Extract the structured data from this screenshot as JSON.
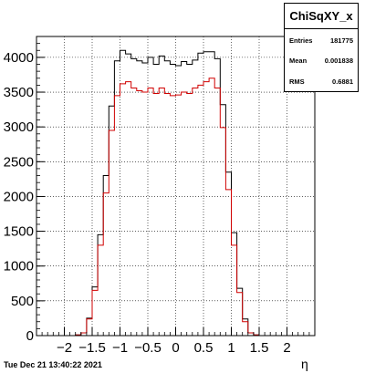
{
  "chart_data": {
    "type": "line",
    "style": "step histogram",
    "title": "",
    "xlabel": "η",
    "ylabel": "",
    "xlim": [
      -2.5,
      2.5
    ],
    "ylim": [
      0,
      4300
    ],
    "xticks": [
      "−2",
      "−1.5",
      "−1",
      "−0.5",
      "0",
      "0.5",
      "1",
      "1.5",
      "2"
    ],
    "xtick_values": [
      -2,
      -1.5,
      -1,
      -0.5,
      0,
      0.5,
      1,
      1.5,
      2
    ],
    "yticks": [
      "0",
      "500",
      "1000",
      "1500",
      "2000",
      "2500",
      "3000",
      "3500",
      "4000"
    ],
    "ytick_values": [
      0,
      500,
      1000,
      1500,
      2000,
      2500,
      3000,
      3500,
      4000
    ],
    "grid": true,
    "colors": {
      "black_series": "#000000",
      "red_series": "#d00000"
    },
    "series": [
      {
        "color": "#000000",
        "x": [
          -2.45,
          -2.35,
          -2.25,
          -2.15,
          -2.05,
          -1.95,
          -1.85,
          -1.75,
          -1.65,
          -1.55,
          -1.45,
          -1.35,
          -1.25,
          -1.15,
          -1.05,
          -0.95,
          -0.85,
          -0.75,
          -0.65,
          -0.55,
          -0.45,
          -0.35,
          -0.25,
          -0.15,
          -0.05,
          0.05,
          0.15,
          0.25,
          0.35,
          0.45,
          0.55,
          0.65,
          0.75,
          0.85,
          0.95,
          1.05,
          1.15,
          1.25,
          1.35,
          1.45,
          1.55,
          1.65,
          1.75,
          1.85,
          1.95,
          2.05,
          2.15,
          2.25,
          2.35,
          2.45
        ],
        "values": [
          0,
          0,
          0,
          0,
          0,
          0,
          0,
          10,
          40,
          250,
          700,
          1450,
          2300,
          3300,
          3950,
          4100,
          4050,
          3980,
          3950,
          3920,
          4000,
          3900,
          4020,
          3950,
          3900,
          3880,
          3940,
          3900,
          3960,
          4060,
          4080,
          4080,
          3980,
          3320,
          2350,
          1480,
          680,
          240,
          40,
          10,
          0,
          0,
          0,
          0,
          0,
          0,
          0,
          0,
          0,
          0
        ]
      },
      {
        "color": "#d00000",
        "x": [
          -2.45,
          -2.35,
          -2.25,
          -2.15,
          -2.05,
          -1.95,
          -1.85,
          -1.75,
          -1.65,
          -1.55,
          -1.45,
          -1.35,
          -1.25,
          -1.15,
          -1.05,
          -0.95,
          -0.85,
          -0.75,
          -0.65,
          -0.55,
          -0.45,
          -0.35,
          -0.25,
          -0.15,
          -0.05,
          0.05,
          0.15,
          0.25,
          0.35,
          0.45,
          0.55,
          0.65,
          0.75,
          0.85,
          0.95,
          1.05,
          1.15,
          1.25,
          1.35,
          1.45,
          1.55,
          1.65,
          1.75,
          1.85,
          1.95,
          2.05,
          2.15,
          2.25,
          2.35,
          2.45
        ],
        "values": [
          0,
          0,
          0,
          0,
          0,
          0,
          0,
          10,
          40,
          240,
          650,
          1300,
          2050,
          2950,
          3450,
          3620,
          3650,
          3560,
          3520,
          3500,
          3560,
          3480,
          3560,
          3480,
          3450,
          3460,
          3500,
          3480,
          3560,
          3600,
          3650,
          3700,
          3560,
          2990,
          2100,
          1300,
          620,
          200,
          40,
          10,
          0,
          0,
          0,
          0,
          0,
          0,
          0,
          0,
          0,
          0
        ]
      }
    ]
  },
  "stats": {
    "title": "ChiSqXY_x",
    "rows": [
      {
        "label": "Entries",
        "value": "181775"
      },
      {
        "label": "Mean",
        "value": "0.001838"
      },
      {
        "label": "RMS",
        "value": "0.6881"
      }
    ]
  },
  "footer": {
    "timestamp": "Tue Dec 21 13:40:22 2021"
  }
}
